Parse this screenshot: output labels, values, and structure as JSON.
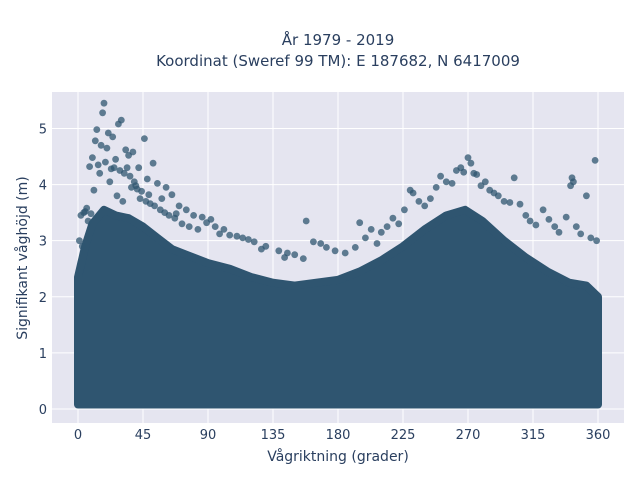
{
  "chart_data": {
    "type": "scatter",
    "title": "År 1979 - 2019",
    "subtitle": "Koordinat (Sweref 99 TM): E 187682, N 6417009",
    "xlabel": "Vågriktning (grader)",
    "ylabel": "Signifikant våghöjd (m)",
    "xlim": [
      -18,
      378
    ],
    "ylim": [
      -0.25,
      5.65
    ],
    "x_ticks": [
      0,
      45,
      90,
      135,
      180,
      225,
      270,
      315,
      360
    ],
    "x_tick_labels": [
      "0",
      "45",
      "90",
      "135",
      "180",
      "225",
      "270",
      "315",
      "360"
    ],
    "y_ticks": [
      0,
      1,
      2,
      3,
      4,
      5
    ],
    "y_tick_labels": [
      "0",
      "1",
      "2",
      "3",
      "4",
      "5"
    ],
    "grid": true,
    "marker_color": "#2f5570",
    "background_color": "#e5e5f0",
    "series": [
      {
        "points": [
          [
            18,
            5.45
          ],
          [
            17,
            5.28
          ],
          [
            30,
            5.15
          ],
          [
            28,
            5.08
          ],
          [
            13,
            4.98
          ],
          [
            21,
            4.92
          ],
          [
            24,
            4.85
          ],
          [
            46,
            4.82
          ],
          [
            12,
            4.78
          ],
          [
            16,
            4.7
          ],
          [
            20,
            4.65
          ],
          [
            33,
            4.62
          ],
          [
            38,
            4.58
          ],
          [
            35,
            4.52
          ],
          [
            10,
            4.48
          ],
          [
            26,
            4.45
          ],
          [
            19,
            4.4
          ],
          [
            52,
            4.38
          ],
          [
            8,
            4.32
          ],
          [
            42,
            4.3
          ],
          [
            29,
            4.25
          ],
          [
            15,
            4.2
          ],
          [
            36,
            4.15
          ],
          [
            48,
            4.1
          ],
          [
            22,
            4.05
          ],
          [
            55,
            4.02
          ],
          [
            40,
            3.98
          ],
          [
            61,
            3.95
          ],
          [
            11,
            3.9
          ],
          [
            44,
            3.88
          ],
          [
            65,
            3.82
          ],
          [
            27,
            3.8
          ],
          [
            58,
            3.75
          ],
          [
            31,
            3.7
          ],
          [
            50,
            3.66
          ],
          [
            70,
            3.62
          ],
          [
            6,
            3.58
          ],
          [
            75,
            3.55
          ],
          [
            68,
            3.48
          ],
          [
            80,
            3.45
          ],
          [
            86,
            3.42
          ],
          [
            92,
            3.38
          ],
          [
            4,
            3.5
          ],
          [
            2,
            3.45
          ],
          [
            89,
            3.32
          ],
          [
            95,
            3.25
          ],
          [
            101,
            3.2
          ],
          [
            98,
            3.12
          ],
          [
            105,
            3.1
          ],
          [
            110,
            3.08
          ],
          [
            114,
            3.05
          ],
          [
            118,
            3.02
          ],
          [
            122,
            2.98
          ],
          [
            130,
            2.9
          ],
          [
            127,
            2.85
          ],
          [
            139,
            2.82
          ],
          [
            145,
            2.78
          ],
          [
            150,
            2.75
          ],
          [
            143,
            2.7
          ],
          [
            156,
            2.68
          ],
          [
            158,
            3.35
          ],
          [
            163,
            2.98
          ],
          [
            168,
            2.95
          ],
          [
            172,
            2.88
          ],
          [
            178,
            2.82
          ],
          [
            185,
            2.78
          ],
          [
            192,
            2.88
          ],
          [
            195,
            3.32
          ],
          [
            199,
            3.05
          ],
          [
            203,
            3.2
          ],
          [
            207,
            2.95
          ],
          [
            210,
            3.15
          ],
          [
            214,
            3.25
          ],
          [
            218,
            3.4
          ],
          [
            222,
            3.3
          ],
          [
            226,
            3.55
          ],
          [
            230,
            3.9
          ],
          [
            232,
            3.85
          ],
          [
            236,
            3.7
          ],
          [
            240,
            3.62
          ],
          [
            244,
            3.75
          ],
          [
            248,
            3.95
          ],
          [
            251,
            4.15
          ],
          [
            255,
            4.05
          ],
          [
            259,
            4.02
          ],
          [
            262,
            4.25
          ],
          [
            265,
            4.3
          ],
          [
            267,
            4.22
          ],
          [
            270,
            4.48
          ],
          [
            272,
            4.38
          ],
          [
            274,
            4.2
          ],
          [
            276,
            4.18
          ],
          [
            279,
            3.98
          ],
          [
            282,
            4.05
          ],
          [
            285,
            3.9
          ],
          [
            288,
            3.85
          ],
          [
            291,
            3.8
          ],
          [
            295,
            3.7
          ],
          [
            299,
            3.68
          ],
          [
            302,
            4.12
          ],
          [
            306,
            3.65
          ],
          [
            310,
            3.45
          ],
          [
            313,
            3.35
          ],
          [
            317,
            3.28
          ],
          [
            322,
            3.55
          ],
          [
            326,
            3.38
          ],
          [
            330,
            3.25
          ],
          [
            333,
            3.15
          ],
          [
            338,
            3.42
          ],
          [
            341,
            3.98
          ],
          [
            342,
            4.12
          ],
          [
            343,
            4.05
          ],
          [
            345,
            3.25
          ],
          [
            348,
            3.12
          ],
          [
            352,
            3.8
          ],
          [
            355,
            3.05
          ],
          [
            358,
            4.43
          ],
          [
            359,
            3.0
          ],
          [
            1,
            3.0
          ],
          [
            3,
            2.9
          ],
          [
            5,
            3.52
          ],
          [
            7,
            3.35
          ],
          [
            9,
            3.48
          ],
          [
            14,
            4.35
          ],
          [
            23,
            4.28
          ],
          [
            25,
            4.3
          ],
          [
            32,
            4.2
          ],
          [
            34,
            4.3
          ],
          [
            37,
            3.95
          ],
          [
            39,
            4.05
          ],
          [
            41,
            3.92
          ],
          [
            43,
            3.75
          ],
          [
            47,
            3.7
          ],
          [
            49,
            3.82
          ],
          [
            53,
            3.62
          ],
          [
            57,
            3.55
          ],
          [
            60,
            3.5
          ],
          [
            63,
            3.45
          ],
          [
            67,
            3.4
          ],
          [
            72,
            3.3
          ],
          [
            77,
            3.25
          ],
          [
            83,
            3.2
          ]
        ]
      }
    ]
  }
}
